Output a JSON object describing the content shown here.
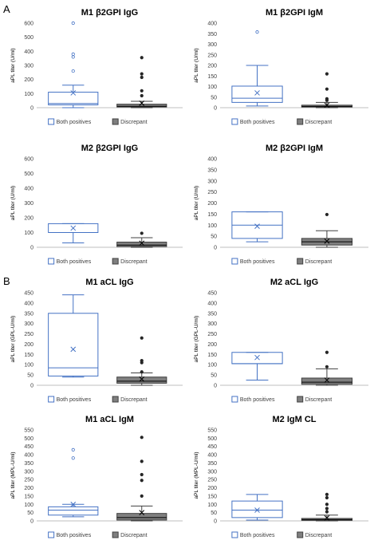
{
  "sections": [
    {
      "label": "A"
    },
    {
      "label": "B"
    }
  ],
  "chart_data": [
    {
      "type": "box",
      "title": "M1 β2GPI IgG",
      "ylabel": "aPL titer (U/ml)",
      "ylim": [
        0,
        600
      ],
      "yticks": [
        0,
        100,
        200,
        300,
        400,
        500,
        600
      ],
      "legend": [
        "Both positives",
        "Discrepant"
      ],
      "series": [
        {
          "name": "Both positives",
          "whisker_low": 0,
          "q1": 20,
          "median": 30,
          "q3": 110,
          "whisker_high": 160,
          "mean": 105,
          "outliers": [
            260,
            360,
            380,
            600
          ]
        },
        {
          "name": "Discrepant",
          "whisker_low": 0,
          "q1": 5,
          "median": 10,
          "q3": 25,
          "whisker_high": 45,
          "mean": 32,
          "outliers": [
            85,
            120,
            215,
            240,
            355
          ]
        }
      ]
    },
    {
      "type": "box",
      "title": "M1 β2GPI IgM",
      "ylabel": "aPL titer (U/ml)",
      "ylim": [
        0,
        400
      ],
      "yticks": [
        0,
        50,
        100,
        150,
        200,
        250,
        300,
        350,
        400
      ],
      "legend": [
        "Both positives",
        "Discrepant"
      ],
      "series": [
        {
          "name": "Both positives",
          "whisker_low": 8,
          "q1": 25,
          "median": 45,
          "q3": 102,
          "whisker_high": 200,
          "mean": 70,
          "outliers": [
            358
          ]
        },
        {
          "name": "Discrepant",
          "whisker_low": 0,
          "q1": 3,
          "median": 6,
          "q3": 12,
          "whisker_high": 25,
          "mean": 12,
          "outliers": [
            35,
            42,
            88,
            160
          ]
        }
      ]
    },
    {
      "type": "box",
      "title": "M2 β2GPI IgG",
      "ylabel": "aPL titer (U/ml)",
      "ylim": [
        0,
        600
      ],
      "yticks": [
        0,
        100,
        200,
        300,
        400,
        500,
        600
      ],
      "legend": [
        "Both positives",
        "Discrepant"
      ],
      "series": [
        {
          "name": "Both positives",
          "whisker_low": 30,
          "q1": 100,
          "median": 100,
          "q3": 160,
          "whisker_high": 160,
          "mean": 130,
          "outliers": []
        },
        {
          "name": "Discrepant",
          "whisker_low": 0,
          "q1": 5,
          "median": 15,
          "q3": 35,
          "whisker_high": 65,
          "mean": 28,
          "outliers": [
            95
          ]
        }
      ]
    },
    {
      "type": "box",
      "title": "M2 β2GPI IgM",
      "ylabel": "aPL titer (U/ml)",
      "ylim": [
        0,
        400
      ],
      "yticks": [
        0,
        50,
        100,
        150,
        200,
        250,
        300,
        350,
        400
      ],
      "legend": [
        "Both positives",
        "Discrepant"
      ],
      "series": [
        {
          "name": "Both positives",
          "whisker_low": 25,
          "q1": 40,
          "median": 100,
          "q3": 160,
          "whisker_high": 160,
          "mean": 95,
          "outliers": []
        },
        {
          "name": "Discrepant",
          "whisker_low": 0,
          "q1": 10,
          "median": 25,
          "q3": 40,
          "whisker_high": 75,
          "mean": 28,
          "outliers": [
            148
          ]
        }
      ]
    },
    {
      "type": "box",
      "title": "M1 aCL IgG",
      "ylabel": "aPL titer (GPL-U/ml)",
      "ylim": [
        0,
        450
      ],
      "yticks": [
        0,
        50,
        100,
        150,
        200,
        250,
        300,
        350,
        400,
        450
      ],
      "legend": [
        "Both positives",
        "Discrepant"
      ],
      "series": [
        {
          "name": "Both positives",
          "whisker_low": 40,
          "q1": 45,
          "median": 85,
          "q3": 350,
          "whisker_high": 440,
          "mean": 175,
          "outliers": []
        },
        {
          "name": "Discrepant",
          "whisker_low": 0,
          "q1": 10,
          "median": 20,
          "q3": 40,
          "whisker_high": 60,
          "mean": 30,
          "outliers": [
            65,
            110,
            120,
            230
          ]
        }
      ]
    },
    {
      "type": "box",
      "title": "M2 aCL IgG",
      "ylabel": "aPL titer (GPL-U/ml)",
      "ylim": [
        0,
        450
      ],
      "yticks": [
        0,
        50,
        100,
        150,
        200,
        250,
        300,
        350,
        400,
        450
      ],
      "legend": [
        "Both positives",
        "Discrepant"
      ],
      "series": [
        {
          "name": "Both positives",
          "whisker_low": 25,
          "q1": 105,
          "median": 105,
          "q3": 160,
          "whisker_high": 160,
          "mean": 135,
          "outliers": []
        },
        {
          "name": "Discrepant",
          "whisker_low": 0,
          "q1": 5,
          "median": 15,
          "q3": 35,
          "whisker_high": 80,
          "mean": 25,
          "outliers": [
            90,
            160
          ]
        }
      ]
    },
    {
      "type": "box",
      "title": "M1 aCL IgM",
      "ylabel": "aPL titer (MPL-U/ml)",
      "ylim": [
        0,
        550
      ],
      "yticks": [
        0,
        50,
        100,
        150,
        200,
        250,
        300,
        350,
        400,
        450,
        500,
        550
      ],
      "legend": [
        "Both positives",
        "Discrepant"
      ],
      "series": [
        {
          "name": "Both positives",
          "whisker_low": 25,
          "q1": 35,
          "median": 65,
          "q3": 85,
          "whisker_high": 100,
          "mean": 100,
          "outliers": [
            380,
            430
          ]
        },
        {
          "name": "Discrepant",
          "whisker_low": 0,
          "q1": 5,
          "median": 20,
          "q3": 45,
          "whisker_high": 90,
          "mean": 50,
          "outliers": [
            150,
            245,
            280,
            360,
            505
          ]
        }
      ]
    },
    {
      "type": "box",
      "title": "M2 IgM CL",
      "ylabel": "aPL titer (MPL-U/ml)",
      "ylim": [
        0,
        550
      ],
      "yticks": [
        0,
        50,
        100,
        150,
        200,
        250,
        300,
        350,
        400,
        450,
        500,
        550
      ],
      "legend": [
        "Both positives",
        "Discrepant"
      ],
      "series": [
        {
          "name": "Both positives",
          "whisker_low": 5,
          "q1": 20,
          "median": 65,
          "q3": 120,
          "whisker_high": 160,
          "mean": 65,
          "outliers": []
        },
        {
          "name": "Discrepant",
          "whisker_low": 0,
          "q1": 3,
          "median": 8,
          "q3": 15,
          "whisker_high": 35,
          "mean": 18,
          "outliers": [
            55,
            75,
            100,
            140,
            160
          ]
        }
      ]
    }
  ],
  "colors": {
    "both_positives": "#4472c4",
    "discrepant_fill": "#7f7f7f",
    "discrepant_stroke": "#404040",
    "axis_text": "#404040",
    "axis_line": "#bfbfbf"
  }
}
